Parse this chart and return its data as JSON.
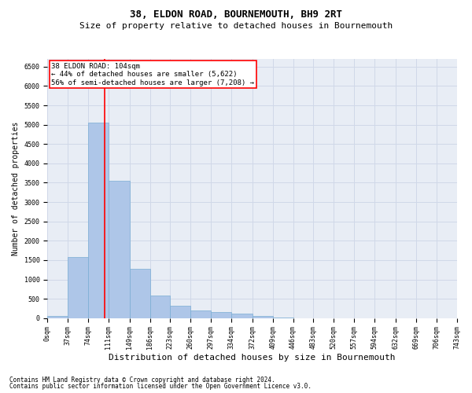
{
  "title1": "38, ELDON ROAD, BOURNEMOUTH, BH9 2RT",
  "title2": "Size of property relative to detached houses in Bournemouth",
  "xlabel": "Distribution of detached houses by size in Bournemouth",
  "ylabel": "Number of detached properties",
  "footer1": "Contains HM Land Registry data © Crown copyright and database right 2024.",
  "footer2": "Contains public sector information licensed under the Open Government Licence v3.0.",
  "annotation_line1": "38 ELDON ROAD: 104sqm",
  "annotation_line2": "← 44% of detached houses are smaller (5,622)",
  "annotation_line3": "56% of semi-detached houses are larger (7,208) →",
  "bar_edges": [
    0,
    37,
    74,
    111,
    149,
    186,
    223,
    260,
    297,
    334,
    372,
    409,
    446,
    483,
    520,
    557,
    594,
    632,
    669,
    706,
    743
  ],
  "bar_heights": [
    50,
    1580,
    5050,
    3550,
    1280,
    580,
    320,
    200,
    155,
    120,
    60,
    20,
    0,
    0,
    0,
    0,
    0,
    0,
    0,
    0
  ],
  "bar_color": "#aec6e8",
  "bar_edge_color": "#7aadd4",
  "property_line_x": 104,
  "ylim": [
    0,
    6700
  ],
  "xlim": [
    0,
    743
  ],
  "yticks": [
    0,
    500,
    1000,
    1500,
    2000,
    2500,
    3000,
    3500,
    4000,
    4500,
    5000,
    5500,
    6000,
    6500
  ],
  "grid_color": "#d0d8e8",
  "bg_color": "#e8edf5",
  "title_fontsize": 9,
  "subtitle_fontsize": 8,
  "xlabel_fontsize": 8,
  "ylabel_fontsize": 7,
  "tick_fontsize": 6,
  "annotation_fontsize": 6.5,
  "footer_fontsize": 5.5
}
